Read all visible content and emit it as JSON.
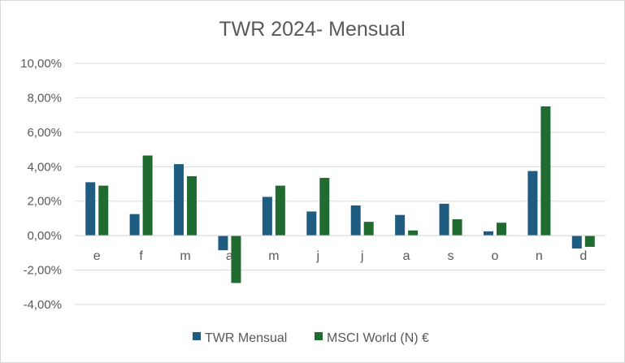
{
  "chart_data": {
    "type": "bar",
    "title": "TWR 2024- Mensual",
    "xlabel": "",
    "ylabel": "",
    "categories": [
      "e",
      "f",
      "m",
      "a",
      "m",
      "j",
      "j",
      "a",
      "s",
      "o",
      "n",
      "d"
    ],
    "series": [
      {
        "name": "TWR Mensual",
        "color": "#1f5c82",
        "values": [
          3.1,
          1.25,
          4.15,
          -0.85,
          2.25,
          1.4,
          1.75,
          1.2,
          1.85,
          0.25,
          3.75,
          -0.75
        ]
      },
      {
        "name": "MSCI World (N) €",
        "color": "#1f6b30",
        "values": [
          2.9,
          4.65,
          3.45,
          -2.75,
          2.9,
          3.35,
          0.8,
          0.3,
          0.95,
          0.75,
          7.5,
          -0.65
        ]
      }
    ],
    "ylim": [
      -4,
      10
    ],
    "yticks": [
      10,
      8,
      6,
      4,
      2,
      0,
      -2,
      -4
    ],
    "ytick_labels": [
      "10,00%",
      "8,00%",
      "6,00%",
      "4,00%",
      "2,00%",
      "0,00%",
      "-2,00%",
      "-4,00%"
    ],
    "grid": true,
    "legend_position": "bottom"
  }
}
